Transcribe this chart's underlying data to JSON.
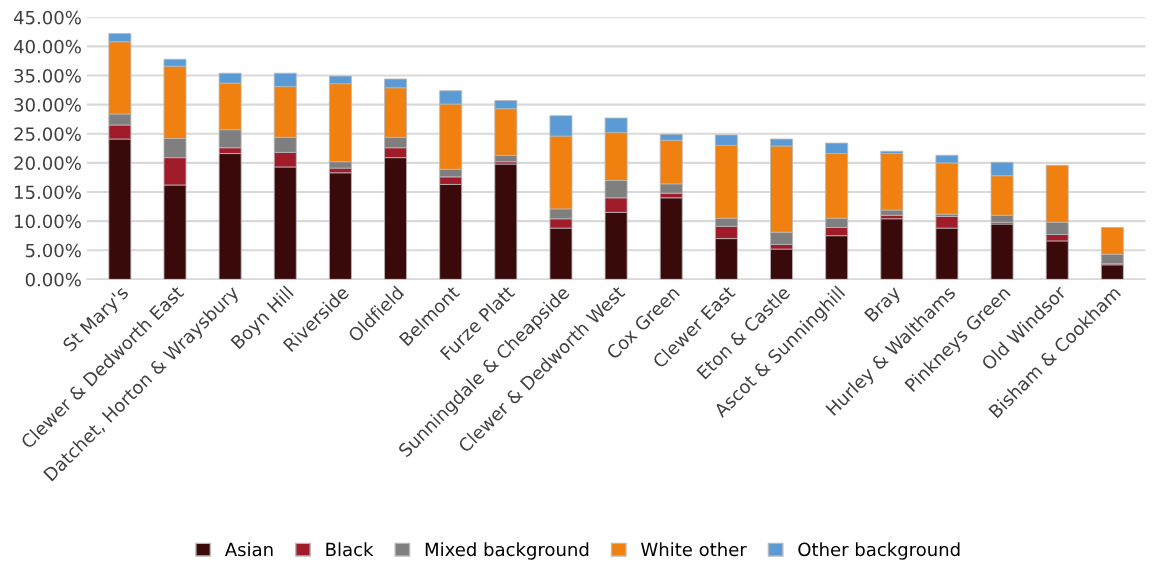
{
  "chart_data": {
    "type": "bar",
    "stacked": true,
    "grid": "y",
    "legend": "bottom",
    "categories": [
      "St Mary's",
      "Clewer & Dedworth East",
      "Datchet, Horton & Wraysbury",
      "Boyn Hill",
      "Riverside",
      "Oldfield",
      "Belmont",
      "Furze Platt",
      "Sunningdale & Cheapside",
      "Clewer & Dedworth West",
      "Cox Green",
      "Clewer East",
      "Eton & Castle",
      "Ascot & Sunninghill",
      "Bray",
      "Hurley & Walthams",
      "Pinkneys Green",
      "Old Windsor",
      "Bisham & Cookham"
    ],
    "ylim": [
      0,
      45
    ],
    "yticks": [
      {
        "value": 0,
        "label": "0.00%"
      },
      {
        "value": 5,
        "label": "5.00%"
      },
      {
        "value": 10,
        "label": "10.00%"
      },
      {
        "value": 15,
        "label": "15.00%"
      },
      {
        "value": 20,
        "label": "20.00%"
      },
      {
        "value": 25,
        "label": "25.00%"
      },
      {
        "value": 30,
        "label": "30.00%"
      },
      {
        "value": 35,
        "label": "35.00%"
      },
      {
        "value": 40,
        "label": "40.00%"
      },
      {
        "value": 45,
        "label": "45.00%"
      }
    ],
    "series": [
      {
        "name": "Asian",
        "color": "#3a0a0a",
        "values": [
          24.1,
          16.2,
          21.6,
          19.3,
          18.3,
          20.9,
          16.3,
          19.8,
          8.8,
          11.5,
          14.0,
          7.0,
          5.2,
          7.5,
          10.4,
          8.8,
          9.5,
          6.6,
          2.5
        ]
      },
      {
        "name": "Black",
        "color": "#a01c2a",
        "values": [
          2.4,
          4.7,
          1.0,
          2.5,
          0.8,
          1.7,
          1.3,
          0.4,
          1.6,
          2.5,
          0.8,
          2.1,
          0.8,
          1.4,
          0.6,
          2.0,
          0.3,
          1.1,
          0.2
        ]
      },
      {
        "name": "Mixed background",
        "color": "#7f7f7f",
        "values": [
          1.9,
          3.3,
          3.1,
          2.6,
          1.1,
          1.8,
          1.3,
          1.1,
          1.7,
          3.0,
          1.6,
          1.4,
          2.1,
          1.6,
          0.9,
          0.4,
          1.2,
          2.1,
          1.6
        ]
      },
      {
        "name": "White other",
        "color": "#f08010",
        "values": [
          12.4,
          12.4,
          8.0,
          8.7,
          13.4,
          8.5,
          11.2,
          8.0,
          12.5,
          8.2,
          7.5,
          12.5,
          14.8,
          11.1,
          9.7,
          8.8,
          6.8,
          9.8,
          4.6
        ]
      },
      {
        "name": "Other background",
        "color": "#5b9bd5",
        "values": [
          1.4,
          1.2,
          1.7,
          2.3,
          1.3,
          1.5,
          2.3,
          1.4,
          3.5,
          2.5,
          1.0,
          1.8,
          1.2,
          1.8,
          0.4,
          1.3,
          2.3,
          null,
          null
        ]
      }
    ]
  }
}
